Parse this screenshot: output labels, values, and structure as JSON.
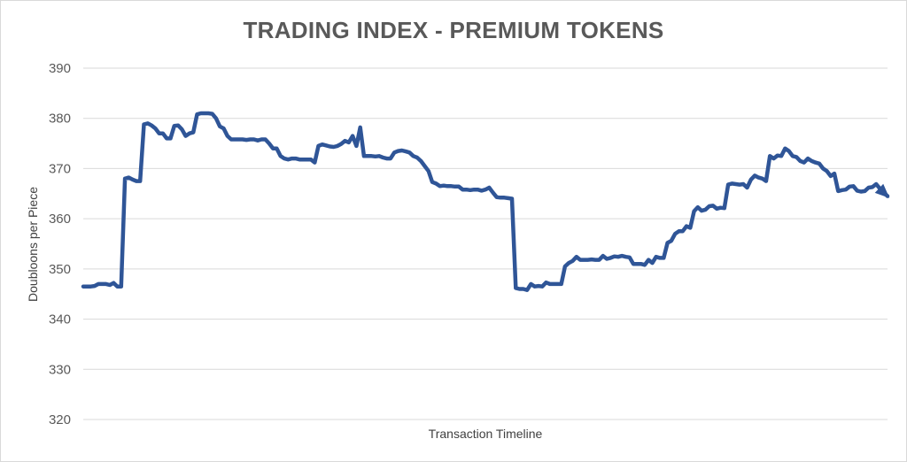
{
  "chart_data": {
    "type": "line",
    "title": "TRADING INDEX - PREMIUM TOKENS",
    "xlabel": "Transaction Timeline",
    "ylabel": "Doubloons per Piece",
    "ylim": [
      320,
      390
    ],
    "yticks": [
      "320",
      "330",
      "340",
      "350",
      "360",
      "370",
      "380",
      "390"
    ],
    "grid": true,
    "legend": "none",
    "line_color": "#2f5597",
    "series": [
      {
        "values": [
          346.5,
          346.5,
          346.5,
          346.6,
          347,
          347,
          347,
          346.8,
          347.2,
          346.5,
          346.5,
          368,
          368.2,
          367.8,
          367.5,
          367.5,
          378.8,
          379,
          378.6,
          378,
          377,
          377,
          376,
          376,
          378.5,
          378.6,
          377.8,
          376.5,
          377,
          377.2,
          380.8,
          381,
          381,
          381,
          380.9,
          380,
          378.4,
          378,
          376.5,
          375.8,
          375.8,
          375.8,
          375.8,
          375.7,
          375.8,
          375.8,
          375.6,
          375.8,
          375.8,
          375,
          374,
          374,
          372.5,
          372,
          371.8,
          372,
          372,
          371.8,
          371.8,
          371.8,
          371.8,
          371.2,
          374.5,
          374.8,
          374.6,
          374.4,
          374.3,
          374.5,
          374.9,
          375.5,
          375.2,
          376.5,
          374.5,
          378.2,
          372.5,
          372.5,
          372.5,
          372.4,
          372.5,
          372.2,
          372,
          372,
          373.2,
          373.5,
          373.6,
          373.4,
          373.2,
          372.5,
          372.2,
          371.5,
          370.5,
          369.5,
          367.3,
          367,
          366.5,
          366.6,
          366.5,
          366.5,
          366.4,
          366.4,
          365.8,
          365.8,
          365.7,
          365.8,
          365.8,
          365.6,
          365.8,
          366.2,
          365.2,
          364.3,
          364.2,
          364.2,
          364.1,
          364,
          346.2,
          346,
          346,
          345.8,
          347,
          346.5,
          346.6,
          346.5,
          347.3,
          347,
          347,
          347,
          347,
          350.5,
          351.2,
          351.6,
          352.4,
          351.8,
          351.8,
          351.8,
          351.9,
          351.8,
          351.8,
          352.6,
          352,
          352.2,
          352.5,
          352.4,
          352.6,
          352.4,
          352.3,
          351,
          351,
          351,
          350.8,
          351.8,
          351.2,
          352.4,
          352.2,
          352.2,
          355.2,
          355.6,
          357,
          357.5,
          357.5,
          358.5,
          358.2,
          361.5,
          362.3,
          361.6,
          361.8,
          362.5,
          362.6,
          362,
          362.2,
          362.1,
          366.8,
          367,
          366.9,
          366.8,
          366.9,
          366.2,
          367.8,
          368.6,
          368.2,
          368,
          367.5,
          372.5,
          372,
          372.6,
          372.5,
          374,
          373.5,
          372.5,
          372.3,
          371.5,
          371.2,
          372,
          371.5,
          371.2,
          371,
          370,
          369.5,
          368.5,
          369,
          365.5,
          365.7,
          365.8,
          366.4,
          366.5,
          365.6,
          365.4,
          365.5,
          366.2,
          366.3,
          366.9,
          366,
          365.2,
          364.5
        ]
      }
    ]
  }
}
